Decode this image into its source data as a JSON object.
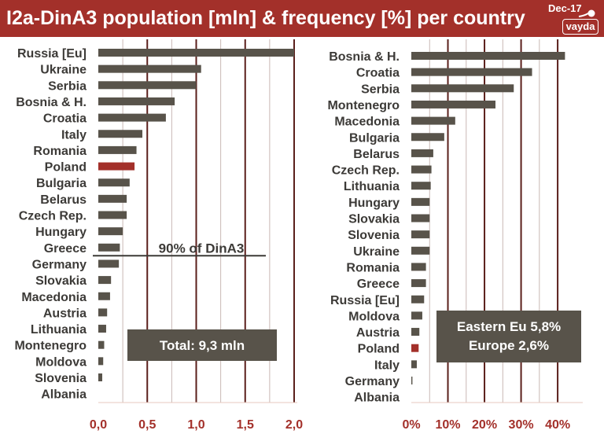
{
  "title": "I2a-DinA3 population [mln] & frequency [%]  per country",
  "badge": {
    "date": "Dec-17",
    "name": "vayda"
  },
  "colors": {
    "title_bg": "#a3302a",
    "bar": "#58534a",
    "highlight": "#a3302a",
    "grid": "#5a1f1b",
    "tick": "#a3302a",
    "label": "#3c3a37"
  },
  "chart_data": [
    {
      "type": "bar",
      "orientation": "horizontal",
      "categories": [
        "Russia [Eu]",
        "Ukraine",
        "Serbia",
        "Bosnia & H.",
        "Croatia",
        "Italy",
        "Romania",
        "Poland",
        "Bulgaria",
        "Belarus",
        "Czech Rep.",
        "Hungary",
        "Greece",
        "Germany",
        "Slovakia",
        "Macedonia",
        "Austria",
        "Lithuania",
        "Montenegro",
        "Moldova",
        "Slovenia",
        "Albania"
      ],
      "values": [
        2.0,
        1.05,
        1.0,
        0.78,
        0.69,
        0.45,
        0.39,
        0.37,
        0.32,
        0.29,
        0.29,
        0.25,
        0.22,
        0.21,
        0.13,
        0.12,
        0.09,
        0.08,
        0.06,
        0.05,
        0.04,
        0.0
      ],
      "highlight": "Poland",
      "xlim": [
        0,
        2.0
      ],
      "ticks": [
        "0,0",
        "0,5",
        "1,0",
        "1,5",
        "2,0"
      ],
      "tick_values": [
        0,
        0.5,
        1.0,
        1.5,
        2.0
      ],
      "annotation": "90%  of DinA3",
      "annotation_after": "Greece",
      "total_label": "Total:  9,3 mln"
    },
    {
      "type": "bar",
      "orientation": "horizontal",
      "categories": [
        "Bosnia & H.",
        "Croatia",
        "Serbia",
        "Montenegro",
        "Macedonia",
        "Bulgaria",
        "Belarus",
        "Czech Rep.",
        "Lithuania",
        "Hungary",
        "Slovakia",
        "Slovenia",
        "Ukraine",
        "Romania",
        "Greece",
        "Russia [Eu]",
        "Moldova",
        "Austria",
        "Poland",
        "Italy",
        "Germany",
        "Albania"
      ],
      "values": [
        42,
        33,
        28,
        23,
        12,
        9,
        6,
        5.5,
        5.3,
        5,
        5,
        5,
        5,
        4,
        4,
        3.5,
        3,
        2.2,
        2,
        1.5,
        0.3,
        0
      ],
      "highlight": "Poland",
      "xlim": [
        0,
        46
      ],
      "ticks": [
        "0%",
        "10%",
        "20%",
        "30%",
        "40%"
      ],
      "tick_values": [
        0,
        10,
        20,
        30,
        40
      ],
      "summary": [
        "Eastern Eu 5,8%",
        "Europe  2,6%"
      ]
    }
  ]
}
